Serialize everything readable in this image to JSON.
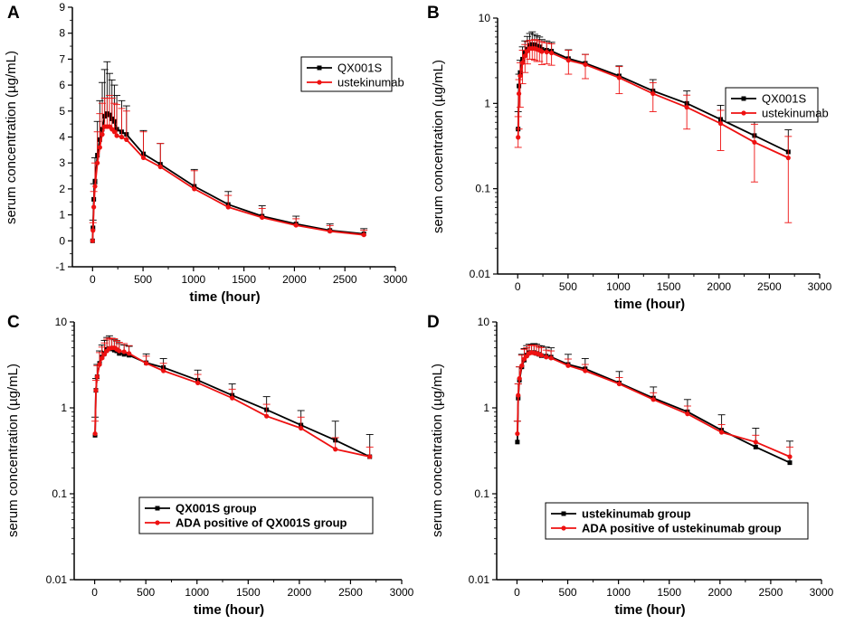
{
  "figure": {
    "colors": {
      "qx": "#000000",
      "ust": "#ee1111",
      "axis": "#000000"
    }
  },
  "chart_data": [
    {
      "panel": "A",
      "type": "line",
      "yscale": "linear",
      "xlabel": "time (hour)",
      "ylabel": "serum concentration (µg/mL)",
      "xlim": [
        -200,
        3000
      ],
      "ylim": [
        -1,
        9
      ],
      "xticks": [
        0,
        500,
        1000,
        1500,
        2000,
        2500,
        3000
      ],
      "xtick_labels": [
        "0",
        "500",
        "1000",
        "1500",
        "2000",
        "2500",
        "3000"
      ],
      "yticks": [
        -1,
        0,
        1,
        2,
        3,
        4,
        5,
        6,
        7,
        8,
        9
      ],
      "ytick_labels": [
        "-1",
        "0",
        "1",
        "2",
        "3",
        "4",
        "5",
        "6",
        "7",
        "8",
        "9"
      ],
      "legend": {
        "position": "top-right"
      },
      "series": [
        {
          "name": "QX001S",
          "color": "#000000",
          "x": [
            0,
            4,
            12,
            24,
            48,
            72,
            96,
            120,
            144,
            168,
            192,
            216,
            240,
            288,
            336,
            504,
            672,
            1008,
            1344,
            1680,
            2016,
            2352,
            2688
          ],
          "y": [
            0,
            0.5,
            1.6,
            2.3,
            3.3,
            3.9,
            4.3,
            4.8,
            4.9,
            4.85,
            4.7,
            4.6,
            4.3,
            4.2,
            4.1,
            3.35,
            2.95,
            2.1,
            1.4,
            0.95,
            0.65,
            0.4,
            0.27
          ],
          "err": [
            0,
            0.3,
            0.6,
            0.9,
            1.3,
            1.5,
            1.8,
            1.8,
            2.0,
            1.6,
            1.5,
            1.4,
            1.3,
            1.2,
            1.1,
            0.9,
            0.8,
            0.65,
            0.5,
            0.4,
            0.3,
            0.25,
            0.2
          ]
        },
        {
          "name": "ustekinumab",
          "color": "#ee1111",
          "x": [
            0,
            4,
            12,
            24,
            48,
            72,
            96,
            120,
            144,
            168,
            192,
            216,
            240,
            288,
            336,
            504,
            672,
            1008,
            1344,
            1680,
            2016,
            2352,
            2688
          ],
          "y": [
            0,
            0.4,
            1.3,
            2.1,
            3.0,
            3.6,
            4.1,
            4.4,
            4.4,
            4.4,
            4.3,
            4.2,
            4.05,
            4.0,
            3.9,
            3.2,
            2.85,
            2.0,
            1.3,
            0.9,
            0.6,
            0.37,
            0.23
          ],
          "err": [
            0,
            0.3,
            0.6,
            0.9,
            1.2,
            1.3,
            1.2,
            1.1,
            1.1,
            1.2,
            1.2,
            1.1,
            1.2,
            1.1,
            1.1,
            1.0,
            0.9,
            0.7,
            0.45,
            0.35,
            0.25,
            0.22,
            0.18
          ]
        }
      ]
    },
    {
      "panel": "B",
      "type": "line",
      "yscale": "log",
      "xlabel": "time (hour)",
      "ylabel": "serum concentration (µg/mL)",
      "xlim": [
        -200,
        3000
      ],
      "ylim": [
        0.01,
        10
      ],
      "xticks": [
        0,
        500,
        1000,
        1500,
        2000,
        2500,
        3000
      ],
      "xtick_labels": [
        "0",
        "500",
        "1000",
        "1500",
        "2000",
        "2500",
        "3000"
      ],
      "yticks": [
        0.01,
        0.1,
        1,
        10
      ],
      "ytick_labels": [
        "0.01",
        "0.1",
        "1",
        "10"
      ],
      "legend": {
        "position": "top-right"
      },
      "series": [
        {
          "name": "QX001S",
          "color": "#000000",
          "x": [
            4,
            12,
            24,
            48,
            72,
            96,
            120,
            144,
            168,
            192,
            216,
            240,
            288,
            336,
            504,
            672,
            1008,
            1344,
            1680,
            2016,
            2352,
            2688
          ],
          "y": [
            0.5,
            1.6,
            2.3,
            3.3,
            3.9,
            4.3,
            4.8,
            4.9,
            4.85,
            4.7,
            4.6,
            4.3,
            4.2,
            4.1,
            3.35,
            2.95,
            2.1,
            1.4,
            1.0,
            0.65,
            0.42,
            0.27
          ],
          "err": [
            0.3,
            0.6,
            0.9,
            1.3,
            1.5,
            1.8,
            1.8,
            2.0,
            1.6,
            1.5,
            1.4,
            1.3,
            1.2,
            1.1,
            0.9,
            0.8,
            0.65,
            0.5,
            0.4,
            0.3,
            0.28,
            0.22
          ]
        },
        {
          "name": "ustekinumab",
          "color": "#ee1111",
          "x": [
            4,
            12,
            24,
            48,
            72,
            96,
            120,
            144,
            168,
            192,
            216,
            240,
            288,
            336,
            504,
            672,
            1008,
            1344,
            1680,
            2016,
            2352,
            2688
          ],
          "y": [
            0.4,
            1.3,
            2.1,
            3.0,
            3.6,
            4.1,
            4.4,
            4.4,
            4.4,
            4.3,
            4.2,
            4.05,
            4.0,
            3.9,
            3.2,
            2.85,
            2.0,
            1.3,
            0.9,
            0.58,
            0.35,
            0.23
          ],
          "err_low": [
            0.095,
            0.8,
            1.2,
            1.3,
            1.3,
            1.2,
            1.1,
            1.1,
            1.2,
            1.2,
            1.1,
            1.2,
            1.1,
            1.1,
            1.0,
            0.9,
            0.7,
            0.5,
            0.4,
            0.3,
            0.23,
            0.19
          ],
          "err": [
            0.3,
            0.6,
            0.9,
            1.2,
            1.3,
            1.2,
            1.1,
            1.1,
            1.2,
            1.2,
            1.1,
            1.2,
            1.1,
            1.1,
            1.0,
            0.9,
            0.7,
            0.45,
            0.35,
            0.25,
            0.22,
            0.18
          ]
        }
      ]
    },
    {
      "panel": "C",
      "type": "line",
      "yscale": "log",
      "xlabel": "time (hour)",
      "ylabel": "serum concentration (µg/mL)",
      "xlim": [
        -200,
        3000
      ],
      "ylim": [
        0.01,
        10
      ],
      "xticks": [
        0,
        500,
        1000,
        1500,
        2000,
        2500,
        3000
      ],
      "xtick_labels": [
        "0",
        "500",
        "1000",
        "1500",
        "2000",
        "2500",
        "3000"
      ],
      "yticks": [
        0.01,
        0.1,
        1,
        10
      ],
      "ytick_labels": [
        "0.01",
        "0.1",
        "1",
        "10"
      ],
      "legend": {
        "position": "bottom-center"
      },
      "series": [
        {
          "name": "QX001S group",
          "color": "#000000",
          "x": [
            4,
            12,
            24,
            48,
            72,
            96,
            120,
            144,
            168,
            192,
            216,
            240,
            288,
            336,
            504,
            672,
            1008,
            1344,
            1680,
            2016,
            2352,
            2688
          ],
          "y": [
            0.48,
            1.6,
            2.3,
            3.3,
            3.9,
            4.3,
            4.8,
            4.9,
            4.85,
            4.7,
            4.6,
            4.3,
            4.2,
            4.1,
            3.35,
            2.95,
            2.1,
            1.4,
            0.95,
            0.63,
            0.42,
            0.27
          ],
          "err": [
            0.3,
            0.6,
            0.9,
            1.3,
            1.5,
            1.8,
            1.8,
            2.0,
            1.6,
            1.5,
            1.4,
            1.3,
            1.2,
            1.1,
            0.9,
            0.8,
            0.65,
            0.5,
            0.4,
            0.3,
            0.28,
            0.22
          ]
        },
        {
          "name": "ADA positive of QX001S group",
          "color": "#ee1111",
          "x": [
            4,
            12,
            24,
            48,
            72,
            96,
            120,
            144,
            168,
            192,
            216,
            240,
            288,
            336,
            504,
            672,
            1008,
            1344,
            1680,
            2016,
            2352,
            2688
          ],
          "y": [
            0.5,
            1.6,
            2.3,
            3.2,
            3.8,
            4.2,
            4.6,
            4.9,
            5.0,
            5.0,
            4.8,
            4.6,
            4.5,
            4.3,
            3.3,
            2.7,
            1.95,
            1.3,
            0.8,
            0.58,
            0.33,
            0.27
          ],
          "err": [
            0.2,
            0.5,
            0.8,
            1.2,
            1.3,
            1.5,
            1.7,
            1.6,
            1.4,
            1.4,
            1.3,
            1.2,
            1.1,
            1.0,
            0.7,
            0.6,
            0.5,
            0.35,
            0.3,
            0.2,
            0.12,
            0.08
          ]
        }
      ]
    },
    {
      "panel": "D",
      "type": "line",
      "yscale": "log",
      "xlabel": "time (hour)",
      "ylabel": "serum concentration (µg/mL)",
      "xlim": [
        -200,
        3000
      ],
      "ylim": [
        0.01,
        10
      ],
      "xticks": [
        0,
        500,
        1000,
        1500,
        2000,
        2500,
        3000
      ],
      "xtick_labels": [
        "0",
        "500",
        "1000",
        "1500",
        "2000",
        "2500",
        "3000"
      ],
      "yticks": [
        0.01,
        0.1,
        1,
        10
      ],
      "ytick_labels": [
        "0.01",
        "0.1",
        "1",
        "10"
      ],
      "legend": {
        "position": "bottom-center"
      },
      "series": [
        {
          "name": "ustekinumab group",
          "color": "#000000",
          "x": [
            4,
            12,
            24,
            48,
            72,
            96,
            120,
            144,
            168,
            192,
            216,
            240,
            288,
            336,
            504,
            672,
            1008,
            1344,
            1680,
            2016,
            2352,
            2688
          ],
          "y": [
            0.4,
            1.3,
            2.1,
            3.0,
            3.6,
            4.1,
            4.4,
            4.4,
            4.4,
            4.3,
            4.2,
            4.05,
            4.0,
            3.9,
            3.2,
            2.85,
            1.95,
            1.3,
            0.9,
            0.55,
            0.35,
            0.23
          ],
          "err": [
            0.3,
            0.6,
            0.9,
            1.2,
            1.3,
            1.2,
            1.1,
            1.1,
            1.2,
            1.2,
            1.1,
            1.2,
            1.1,
            1.1,
            1.0,
            0.9,
            0.7,
            0.45,
            0.35,
            0.28,
            0.23,
            0.18
          ]
        },
        {
          "name": "ADA positive of ustekinumab group",
          "color": "#ee1111",
          "x": [
            4,
            12,
            24,
            48,
            72,
            96,
            120,
            144,
            168,
            192,
            216,
            240,
            288,
            336,
            504,
            672,
            1008,
            1344,
            1680,
            2016,
            2352,
            2688
          ],
          "y": [
            0.5,
            1.4,
            2.2,
            3.1,
            3.7,
            4.0,
            4.3,
            4.4,
            4.35,
            4.3,
            4.2,
            4.1,
            3.9,
            3.8,
            3.1,
            2.7,
            1.9,
            1.25,
            0.85,
            0.52,
            0.4,
            0.27
          ],
          "err": [
            0.2,
            0.5,
            0.8,
            1.0,
            1.1,
            1.0,
            1.0,
            1.0,
            1.0,
            1.0,
            0.9,
            0.9,
            0.8,
            0.8,
            0.6,
            0.5,
            0.35,
            0.25,
            0.2,
            0.12,
            0.08,
            0.08
          ]
        }
      ]
    }
  ]
}
